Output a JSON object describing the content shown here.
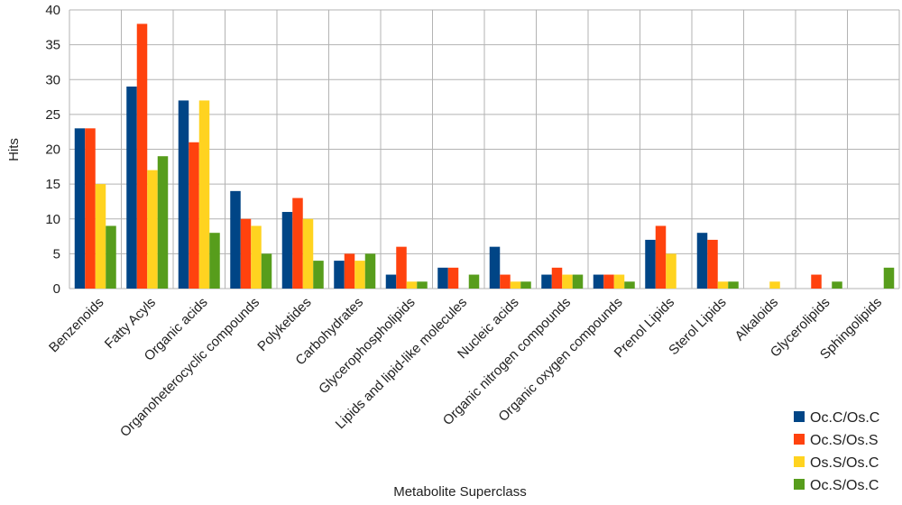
{
  "chart_data": {
    "type": "bar",
    "xlabel": "Metabolite Superclass",
    "ylabel": "Hits",
    "ylim": [
      0,
      40
    ],
    "yticks": [
      0,
      5,
      10,
      15,
      20,
      25,
      30,
      35,
      40
    ],
    "grid": true,
    "legend_position": "bottom-right",
    "categories": [
      "Benzenoids",
      "Fatty Acyls",
      "Organic acids",
      "Organoheterocyclic compounds",
      "Polyketides",
      "Carbohydrates",
      "Glycerophospholipids",
      "Lipids and lipid-like molecules",
      "Nucleic acids",
      "Organic nitrogen compounds",
      "Organic oxygen compounds",
      "Prenol Lipids",
      "Sterol Lipids",
      "Alkaloids",
      "Glycerolipids",
      "Sphingolipids"
    ],
    "series": [
      {
        "name": "Oc.C/Os.C",
        "color": "#004586",
        "values": [
          23,
          29,
          27,
          14,
          11,
          4,
          2,
          3,
          6,
          2,
          2,
          7,
          8,
          0,
          0,
          0
        ]
      },
      {
        "name": "Oc.S/Os.S",
        "color": "#ff420e",
        "values": [
          23,
          38,
          21,
          10,
          13,
          5,
          6,
          3,
          2,
          3,
          2,
          9,
          7,
          0,
          2,
          0
        ]
      },
      {
        "name": "Os.S/Os.C",
        "color": "#ffd320",
        "values": [
          15,
          17,
          27,
          9,
          10,
          4,
          1,
          0,
          1,
          2,
          2,
          5,
          1,
          1,
          0,
          0
        ]
      },
      {
        "name": "Oc.S/Os.C",
        "color": "#579d1c",
        "values": [
          9,
          19,
          8,
          5,
          4,
          5,
          1,
          2,
          1,
          2,
          1,
          0,
          1,
          0,
          1,
          3
        ]
      }
    ]
  }
}
